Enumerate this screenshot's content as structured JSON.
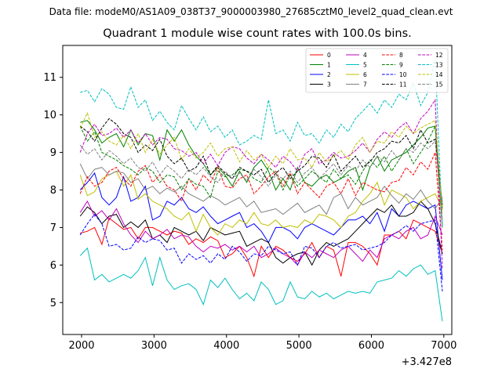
{
  "suptitle": "Data file: modeM0/AS1A09_038T37_9000003980_27685cztM0_level2_quad_clean.evt",
  "chart_data": {
    "type": "line",
    "title": "Quadrant 1 module wise count rates with 100.0s bins.",
    "xlabel": "",
    "ylabel": "",
    "offset_text": "+3.427e8",
    "xlim": [
      1740,
      7110
    ],
    "ylim": [
      4.15,
      11.85
    ],
    "x_ticks": [
      2000,
      3000,
      4000,
      5000,
      6000,
      7000
    ],
    "y_ticks": [
      5,
      6,
      7,
      8,
      9,
      10,
      11
    ],
    "x_start": 1980,
    "x_step": 100,
    "legend_position": "top-right",
    "series": [
      {
        "name": "0",
        "color": "#ff0000",
        "dash": "solid",
        "values": [
          6.85,
          6.9,
          7.0,
          6.55,
          7.25,
          7.1,
          6.95,
          7.0,
          6.7,
          7.0,
          7.0,
          6.9,
          6.8,
          6.9,
          6.85,
          6.55,
          6.7,
          6.6,
          6.75,
          6.65,
          6.2,
          6.3,
          6.5,
          6.2,
          5.7,
          6.5,
          6.2,
          6.5,
          6.4,
          6.2,
          6.1,
          6.3,
          6.6,
          6.2,
          6.5,
          6.4,
          5.7,
          6.6,
          6.6,
          6.5,
          6.3,
          6.0,
          6.8,
          6.8,
          6.9,
          6.7,
          7.2,
          7.1,
          7.0,
          6.9,
          6.3
        ]
      },
      {
        "name": "1",
        "color": "#008000",
        "dash": "solid",
        "values": [
          9.8,
          9.85,
          9.6,
          9.25,
          9.4,
          9.5,
          9.15,
          9.6,
          9.2,
          9.5,
          9.45,
          8.8,
          9.6,
          9.3,
          9.6,
          9.2,
          8.9,
          8.7,
          8.4,
          8.6,
          8.4,
          8.1,
          8.5,
          8.2,
          8.6,
          8.8,
          8.5,
          8.0,
          8.3,
          8.0,
          8.6,
          8.2,
          8.1,
          8.3,
          8.4,
          8.2,
          8.3,
          8.5,
          8.6,
          8.0,
          8.6,
          8.9,
          8.5,
          8.8,
          8.9,
          9.0,
          9.2,
          9.4,
          9.65,
          9.7,
          7.0
        ]
      },
      {
        "name": "2",
        "color": "#0000ff",
        "dash": "solid",
        "values": [
          8.0,
          8.2,
          8.45,
          7.8,
          7.6,
          7.8,
          8.35,
          7.7,
          7.8,
          8.1,
          7.2,
          7.3,
          7.7,
          7.6,
          7.8,
          7.5,
          7.4,
          7.55,
          7.3,
          7.1,
          7.2,
          7.3,
          7.4,
          7.0,
          7.1,
          6.9,
          6.6,
          7.0,
          7.0,
          6.9,
          6.7,
          7.0,
          7.1,
          7.0,
          6.9,
          6.8,
          7.0,
          7.2,
          7.2,
          7.3,
          7.1,
          7.4,
          6.9,
          7.5,
          7.3,
          7.6,
          7.7,
          7.6,
          7.5,
          7.6,
          5.6
        ]
      },
      {
        "name": "3",
        "color": "#000000",
        "dash": "solid",
        "values": [
          7.3,
          7.55,
          7.4,
          7.1,
          7.3,
          7.35,
          7.0,
          7.15,
          7.0,
          7.2,
          6.7,
          6.8,
          6.6,
          7.0,
          6.9,
          6.8,
          6.9,
          6.65,
          7.0,
          6.9,
          6.8,
          6.85,
          6.9,
          6.5,
          6.6,
          6.7,
          6.6,
          6.2,
          6.05,
          6.2,
          6.3,
          6.35,
          6.0,
          6.4,
          6.6,
          6.5,
          6.6,
          6.7,
          6.9,
          7.1,
          7.3,
          7.5,
          7.4,
          7.6,
          7.3,
          7.3,
          7.4,
          7.7,
          7.5,
          7.1,
          6.3
        ]
      },
      {
        "name": "4",
        "color": "#bf00bf",
        "dash": "solid",
        "values": [
          7.4,
          7.7,
          7.3,
          7.45,
          7.2,
          7.5,
          7.1,
          6.8,
          6.6,
          6.9,
          6.7,
          6.8,
          6.95,
          6.7,
          6.8,
          6.75,
          6.5,
          6.35,
          6.5,
          6.45,
          6.55,
          6.4,
          6.5,
          6.35,
          6.5,
          6.2,
          6.3,
          6.45,
          6.3,
          6.2,
          6.0,
          6.35,
          6.2,
          6.4,
          6.3,
          6.2,
          6.4,
          6.5,
          6.3,
          6.1,
          6.4,
          6.2,
          6.7,
          6.8,
          6.7,
          6.9,
          7.0,
          6.7,
          6.8,
          7.3,
          6.8
        ]
      },
      {
        "name": "5",
        "color": "#00bfbf",
        "dash": "solid",
        "values": [
          6.25,
          6.45,
          5.6,
          5.75,
          5.55,
          5.65,
          5.75,
          5.65,
          5.85,
          6.2,
          5.45,
          6.2,
          5.6,
          5.35,
          5.45,
          5.5,
          5.35,
          4.95,
          5.6,
          5.4,
          5.65,
          5.35,
          5.1,
          5.25,
          5.05,
          5.55,
          5.35,
          4.95,
          5.05,
          5.55,
          5.15,
          5.1,
          5.3,
          5.15,
          5.25,
          5.1,
          5.2,
          5.3,
          5.25,
          5.3,
          5.25,
          5.55,
          5.6,
          5.65,
          5.85,
          5.7,
          5.9,
          6.0,
          5.75,
          5.85,
          4.5
        ]
      },
      {
        "name": "6",
        "color": "#bfbf00",
        "dash": "solid",
        "values": [
          8.4,
          7.85,
          7.95,
          8.3,
          8.4,
          8.5,
          8.1,
          8.4,
          7.75,
          7.9,
          7.7,
          7.6,
          7.5,
          7.3,
          7.2,
          7.4,
          6.9,
          7.35,
          7.0,
          6.8,
          7.1,
          7.0,
          7.2,
          7.1,
          7.4,
          7.1,
          7.05,
          7.2,
          7.0,
          7.05,
          7.0,
          7.2,
          7.1,
          7.35,
          7.3,
          7.2,
          7.0,
          7.3,
          7.4,
          7.7,
          7.9,
          8.2,
          7.6,
          8.0,
          7.9,
          7.8,
          7.5,
          7.7,
          7.8,
          7.9,
          7.5
        ]
      },
      {
        "name": "7",
        "color": "#808080",
        "dash": "solid",
        "values": [
          8.7,
          8.3,
          8.55,
          8.6,
          8.4,
          8.5,
          8.45,
          8.2,
          8.3,
          8.0,
          8.1,
          7.9,
          8.05,
          7.95,
          8.1,
          7.9,
          7.8,
          7.7,
          7.85,
          7.75,
          7.6,
          7.7,
          7.8,
          7.55,
          7.7,
          7.4,
          7.45,
          7.5,
          7.35,
          7.5,
          7.65,
          7.4,
          7.5,
          7.6,
          7.35,
          7.8,
          7.9,
          7.5,
          7.8,
          7.6,
          7.7,
          7.8,
          8.1,
          7.85,
          7.65,
          7.9,
          7.75,
          8.0,
          7.7,
          7.5,
          7.8
        ]
      },
      {
        "name": "8",
        "color": "#ff0000",
        "dash": "dashed",
        "values": [
          7.9,
          8.35,
          8.1,
          8.2,
          8.5,
          8.6,
          8.3,
          8.1,
          8.5,
          8.65,
          8.2,
          8.4,
          8.1,
          8.0,
          7.7,
          8.3,
          8.0,
          8.4,
          8.2,
          8.6,
          8.1,
          8.05,
          8.3,
          8.4,
          7.9,
          8.1,
          8.35,
          8.5,
          8.1,
          8.45,
          7.9,
          8.2,
          8.0,
          7.8,
          8.1,
          8.2,
          7.9,
          8.3,
          7.85,
          8.2,
          8.1,
          8.0,
          7.95,
          8.2,
          8.25,
          8.6,
          8.4,
          8.75,
          8.55,
          9.0,
          6.4
        ]
      },
      {
        "name": "9",
        "color": "#008000",
        "dash": "dashed",
        "values": [
          9.7,
          9.3,
          9.55,
          9.0,
          8.9,
          8.8,
          8.65,
          8.55,
          8.4,
          8.6,
          8.5,
          8.2,
          8.4,
          8.35,
          8.0,
          8.3,
          8.15,
          8.1,
          7.8,
          8.5,
          8.35,
          8.4,
          8.55,
          8.5,
          8.3,
          8.2,
          8.6,
          8.45,
          8.0,
          8.4,
          8.1,
          8.3,
          8.5,
          8.35,
          8.2,
          8.55,
          8.3,
          8.4,
          8.15,
          8.5,
          8.8,
          8.6,
          8.9,
          8.5,
          8.8,
          9.1,
          8.7,
          9.0,
          9.3,
          9.7,
          7.5
        ]
      },
      {
        "name": "10",
        "color": "#0000ff",
        "dash": "dashed",
        "values": [
          6.8,
          7.1,
          7.35,
          7.1,
          6.5,
          6.55,
          6.4,
          6.45,
          6.75,
          6.6,
          6.7,
          6.65,
          6.4,
          6.45,
          6.05,
          6.3,
          6.15,
          6.25,
          6.05,
          6.3,
          6.15,
          6.5,
          6.35,
          6.1,
          6.3,
          6.25,
          6.5,
          6.4,
          6.3,
          6.35,
          6.0,
          6.5,
          6.45,
          6.2,
          6.5,
          6.6,
          6.45,
          6.5,
          6.55,
          6.4,
          6.45,
          6.5,
          6.6,
          6.8,
          6.9,
          7.05,
          6.9,
          7.1,
          7.15,
          7.2,
          5.3
        ]
      },
      {
        "name": "11",
        "color": "#000000",
        "dash": "dashed",
        "values": [
          9.7,
          9.55,
          9.3,
          9.65,
          9.9,
          9.75,
          9.5,
          9.4,
          9.0,
          9.2,
          9.05,
          9.35,
          8.9,
          8.7,
          8.85,
          8.5,
          8.6,
          8.9,
          8.4,
          8.65,
          8.45,
          8.3,
          8.6,
          8.5,
          8.4,
          8.55,
          8.2,
          8.45,
          8.6,
          8.3,
          8.5,
          8.65,
          8.9,
          8.85,
          8.6,
          8.95,
          8.5,
          8.7,
          8.9,
          8.6,
          8.75,
          9.0,
          9.1,
          9.3,
          9.25,
          9.45,
          9.1,
          9.6,
          9.25,
          9.35,
          7.6
        ]
      },
      {
        "name": "12",
        "color": "#bf00bf",
        "dash": "dashed",
        "values": [
          9.0,
          9.5,
          9.75,
          9.45,
          9.5,
          9.65,
          9.4,
          9.6,
          9.25,
          9.5,
          9.2,
          9.4,
          9.35,
          9.1,
          9.05,
          8.9,
          9.0,
          8.7,
          8.95,
          8.65,
          9.0,
          9.15,
          9.1,
          8.85,
          8.7,
          8.95,
          8.8,
          8.6,
          8.9,
          8.75,
          8.5,
          8.95,
          9.1,
          8.7,
          8.8,
          9.0,
          8.85,
          8.9,
          9.05,
          9.25,
          9.0,
          9.35,
          9.55,
          9.4,
          9.65,
          9.8,
          9.5,
          9.9,
          10.1,
          10.4,
          5.9
        ]
      },
      {
        "name": "13",
        "color": "#00bfbf",
        "dash": "dashed",
        "values": [
          10.6,
          10.65,
          10.35,
          10.7,
          10.55,
          10.2,
          10.15,
          10.75,
          10.2,
          10.4,
          9.85,
          10.1,
          9.8,
          9.6,
          10.25,
          9.9,
          9.6,
          9.95,
          9.55,
          9.7,
          9.4,
          9.6,
          9.2,
          9.3,
          9.45,
          9.35,
          10.4,
          9.5,
          9.6,
          9.3,
          9.8,
          9.45,
          9.5,
          9.25,
          9.6,
          9.4,
          9.75,
          9.55,
          9.9,
          10.1,
          10.3,
          10.05,
          10.4,
          10.2,
          10.55,
          10.4,
          10.85,
          10.25,
          10.6,
          11.5,
          7.0
        ]
      },
      {
        "name": "14",
        "color": "#bfbf00",
        "dash": "dashed",
        "values": [
          9.65,
          10.05,
          9.4,
          9.55,
          9.3,
          9.2,
          9.45,
          9.1,
          9.5,
          9.0,
          9.35,
          8.95,
          9.2,
          9.4,
          8.8,
          9.1,
          8.85,
          9.0,
          9.25,
          8.9,
          9.1,
          9.15,
          8.75,
          9.05,
          8.8,
          8.95,
          8.6,
          8.9,
          8.7,
          9.1,
          8.8,
          8.85,
          8.6,
          9.0,
          8.75,
          8.9,
          9.05,
          8.8,
          9.2,
          9.4,
          9.0,
          9.3,
          9.25,
          9.55,
          9.4,
          9.7,
          9.5,
          9.65,
          9.75,
          9.85,
          7.4
        ]
      },
      {
        "name": "15",
        "color": "#808080",
        "dash": "dashed",
        "values": [
          9.2,
          8.95,
          9.1,
          8.8,
          9.05,
          8.9,
          8.7,
          8.85,
          8.6,
          8.5,
          8.75,
          8.4,
          8.65,
          8.5,
          8.3,
          8.55,
          8.4,
          8.6,
          8.35,
          8.2,
          8.5,
          8.3,
          8.45,
          8.25,
          8.55,
          8.35,
          8.1,
          8.4,
          8.3,
          8.5,
          8.2,
          8.45,
          8.6,
          8.3,
          8.5,
          8.7,
          8.4,
          8.65,
          8.5,
          8.8,
          8.6,
          8.9,
          8.75,
          9.05,
          8.8,
          9.1,
          9.0,
          9.25,
          9.1,
          9.3,
          7.2
        ]
      }
    ]
  }
}
